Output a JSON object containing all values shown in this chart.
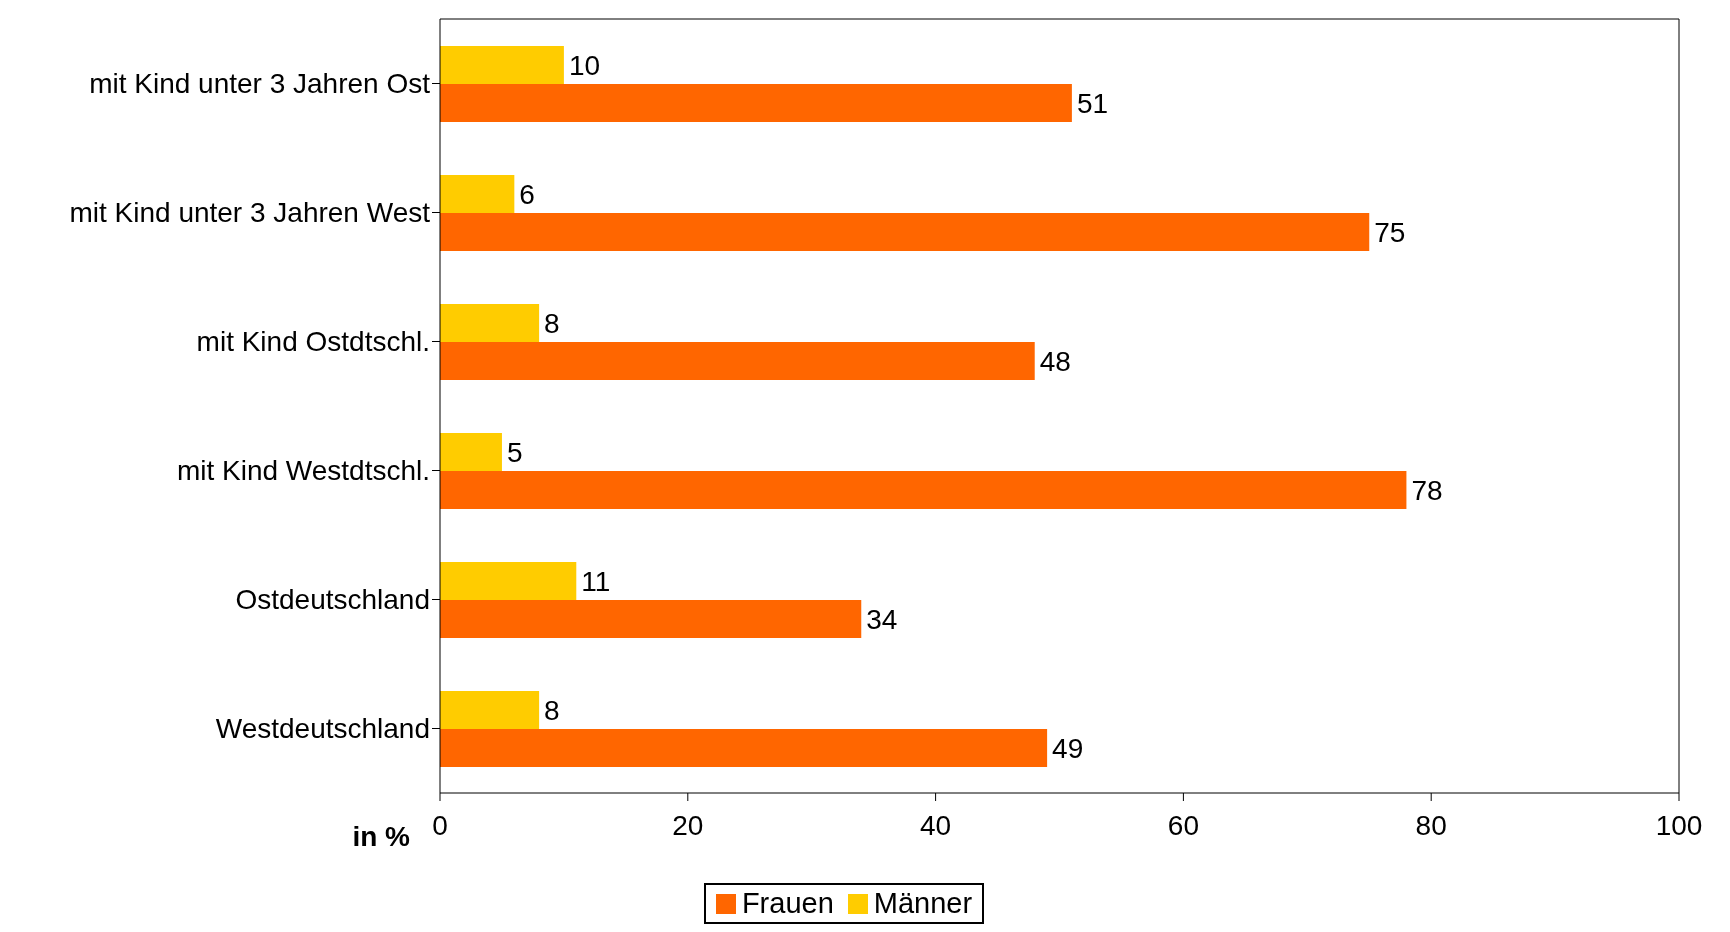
{
  "chart_data": {
    "type": "bar",
    "orientation": "horizontal",
    "categories": [
      "mit Kind unter 3 Jahren Ost",
      "mit Kind unter 3 Jahren West",
      "mit Kind Ostdtschl.",
      "mit Kind Westdtschl.",
      "Ostdeutschland",
      "Westdeutschland"
    ],
    "series": [
      {
        "name": "Frauen",
        "color": "#ff6600",
        "values": [
          51,
          75,
          48,
          78,
          34,
          49
        ]
      },
      {
        "name": "Männer",
        "color": "#ffcc00",
        "values": [
          10,
          6,
          8,
          5,
          11,
          8
        ]
      }
    ],
    "xlabel": "in %",
    "xlim": [
      0,
      100
    ],
    "xticks": [
      0,
      20,
      40,
      60,
      80,
      100
    ],
    "grid": false,
    "legend": "bottom",
    "data_labels": true
  }
}
